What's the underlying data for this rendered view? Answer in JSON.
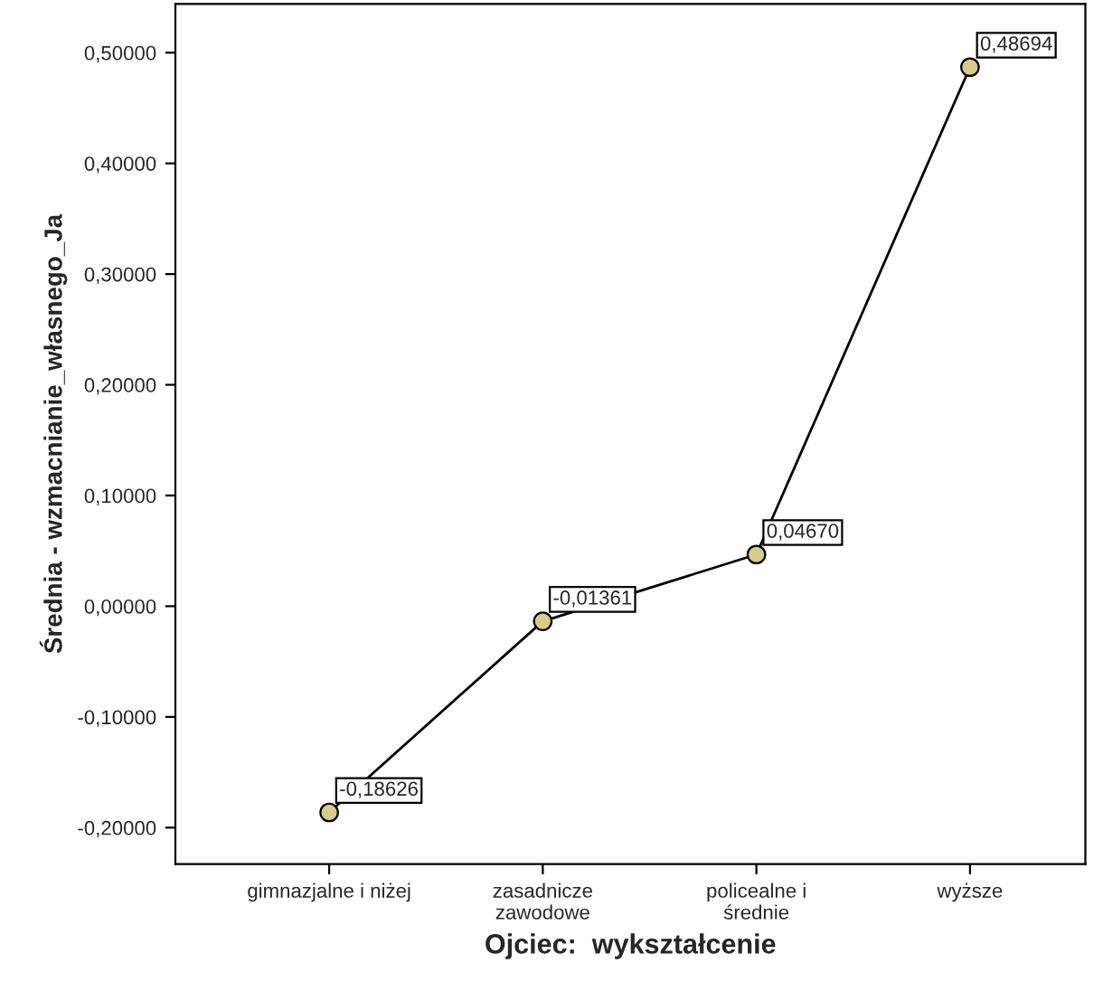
{
  "chart_data": {
    "type": "line",
    "xlabel": "Ojciec:  wykształcenie",
    "ylabel": "Średnia - wzmacnianie_własnego_Ja",
    "categories": [
      "gimnazjalne i niżej",
      "zasadnicze\nzawodowe",
      "policealne i\nśrednie",
      "wyższe"
    ],
    "series": [
      {
        "color": "#000000",
        "colors": [
          "#d6cc8c",
          "#d6cc8c",
          "#d6cc8c",
          "#d6cc8c"
        ],
        "values": [
          -0.18626,
          -0.01361,
          0.0467,
          0.48694
        ],
        "value_labels": [
          "-0,18626",
          "-0,01361",
          "0,04670",
          "0,48694"
        ]
      }
    ],
    "marker": "circle",
    "line_style": "solid",
    "grid": false,
    "legend": false,
    "ylim": [
      -0.233,
      0.544
    ],
    "yticks": [
      {
        "value": -0.2,
        "label": "-0,20000"
      },
      {
        "value": -0.1,
        "label": "-0,10000"
      },
      {
        "value": 0.0,
        "label": "0,00000"
      },
      {
        "value": 0.1,
        "label": "0,10000"
      },
      {
        "value": 0.2,
        "label": "0,20000"
      },
      {
        "value": 0.3,
        "label": "0,30000"
      },
      {
        "value": 0.4,
        "label": "0,40000"
      },
      {
        "value": 0.5,
        "label": "0,50000"
      }
    ]
  }
}
